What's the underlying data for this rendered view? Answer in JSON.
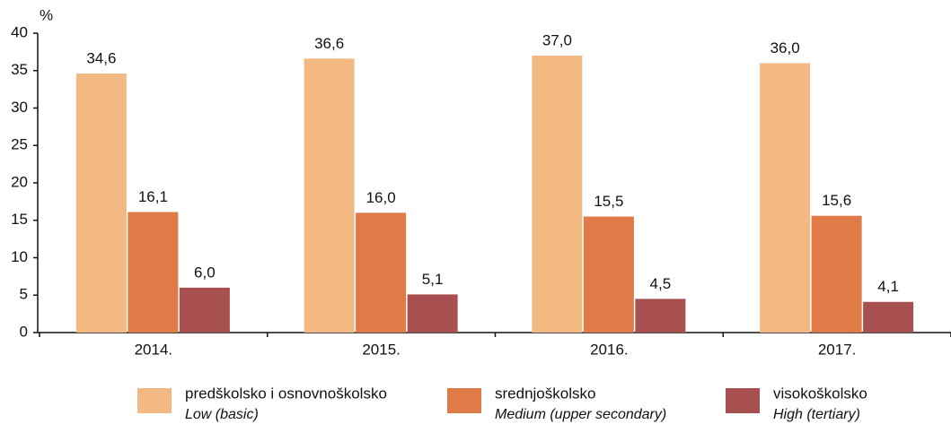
{
  "chart_data": {
    "type": "bar",
    "y_label": "%",
    "categories": [
      "2014.",
      "2015.",
      "2016.",
      "2017."
    ],
    "series": [
      {
        "name": "predškolsko i osnovnoškolsko",
        "name_en": "Low (basic)",
        "color": "#f3b982",
        "values": [
          34.6,
          36.6,
          37.0,
          36.0
        ],
        "value_labels": [
          "34,6",
          "36,6",
          "37,0",
          "36,0"
        ]
      },
      {
        "name": "srednjoškolsko",
        "name_en": "Medium (upper secondary)",
        "color": "#e07b47",
        "values": [
          16.1,
          16.0,
          15.5,
          15.6
        ],
        "value_labels": [
          "16,1",
          "16,0",
          "15,5",
          "15,6"
        ]
      },
      {
        "name": "visokoškolsko",
        "name_en": "High (tertiary)",
        "color": "#a84f4f",
        "values": [
          6.0,
          5.1,
          4.5,
          4.1
        ],
        "value_labels": [
          "6,0",
          "5,1",
          "4,5",
          "4,1"
        ]
      }
    ],
    "ylim": [
      0,
      40
    ],
    "yticks": [
      0,
      5,
      10,
      15,
      20,
      25,
      30,
      35,
      40
    ],
    "legend": "bottom"
  }
}
